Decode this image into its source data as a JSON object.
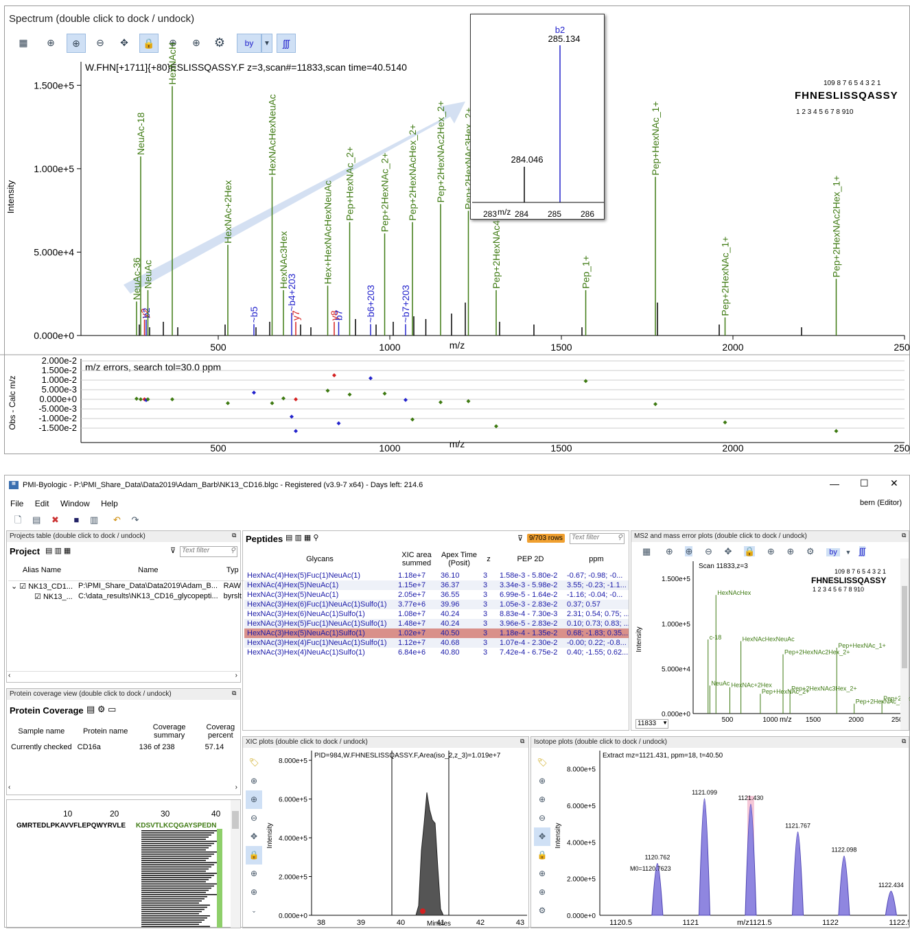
{
  "spectrum": {
    "title": "Spectrum (double click to dock / undock)",
    "header": "W.FHN[+1711]{+80}ESLISSQASSY.F z=3,scan#=11833,scan time=40.5140",
    "ylabel": "Intensity",
    "xlabel": "m/z",
    "yticks": [
      "1.500e+5",
      "1.000e+5",
      "5.000e+4",
      "0.000e+0"
    ],
    "xticks": [
      "500",
      "1000",
      "1500",
      "2000",
      "2500"
    ],
    "sequence": "FHNESLISSQASSY",
    "y_ion_numbers": "109 8 7 6 5 4 3 2 1",
    "b_ion_numbers": "1 2 3 4 5 6 7 8 910",
    "toolbar_by": "by",
    "peak_labels": [
      {
        "text": "NeuAc-36",
        "color": "#3e7a12",
        "mz": 262,
        "h": 15
      },
      {
        "text": "y2",
        "color": "#d42020",
        "mz": 285,
        "h": 7
      },
      {
        "text": "b2",
        "color": "#2222cc",
        "mz": 290,
        "h": 7
      },
      {
        "text": "NeuAc-18",
        "color": "#3e7a12",
        "mz": 274,
        "h": 79
      },
      {
        "text": "NeuAc",
        "color": "#3e7a12",
        "mz": 295,
        "h": 20
      },
      {
        "text": "HexNAcH",
        "color": "#3e7a12",
        "mz": 366,
        "h": 110
      },
      {
        "text": "HexNAc+2Hex",
        "color": "#3e7a12",
        "mz": 528,
        "h": 40
      },
      {
        "text": "~b5",
        "color": "#2222cc",
        "mz": 604,
        "h": 5
      },
      {
        "text": "HexNAcHexNeuAc",
        "color": "#3e7a12",
        "mz": 657,
        "h": 70
      },
      {
        "text": "HexNAc3Hex",
        "color": "#3e7a12",
        "mz": 690,
        "h": 20
      },
      {
        "text": "~b4+203",
        "color": "#2222cc",
        "mz": 714,
        "h": 10
      },
      {
        "text": "y7",
        "color": "#d42020",
        "mz": 726,
        "h": 6
      },
      {
        "text": "Hex+HexNAcHexNeuAc",
        "color": "#3e7a12",
        "mz": 819,
        "h": 22
      },
      {
        "text": "y8",
        "color": "#d42020",
        "mz": 838,
        "h": 6
      },
      {
        "text": "b7",
        "color": "#2222cc",
        "mz": 851,
        "h": 6
      },
      {
        "text": "Pep+HexNAc_2+",
        "color": "#3e7a12",
        "mz": 883,
        "h": 50
      },
      {
        "text": "~b6+203",
        "color": "#2222cc",
        "mz": 944,
        "h": 5
      },
      {
        "text": "Pep+2HexNAc_2+",
        "color": "#3e7a12",
        "mz": 985,
        "h": 45
      },
      {
        "text": "~b7+203",
        "color": "#2222cc",
        "mz": 1046,
        "h": 5
      },
      {
        "text": "Pep+2HexNAcHex_2+",
        "color": "#3e7a12",
        "mz": 1066,
        "h": 50
      },
      {
        "text": "Pep+2HexNAc2Hex_2+",
        "color": "#3e7a12",
        "mz": 1148,
        "h": 58
      },
      {
        "text": "Pep+2HexNAc3Hex_2+",
        "color": "#3e7a12",
        "mz": 1229,
        "h": 55
      },
      {
        "text": "Pep+2HexNAc4Hex",
        "color": "#3e7a12",
        "mz": 1310,
        "h": 20
      },
      {
        "text": "Pep_1+",
        "color": "#3e7a12",
        "mz": 1571,
        "h": 20
      },
      {
        "text": "Pep+HexNAc_1+",
        "color": "#3e7a12",
        "mz": 1774,
        "h": 70
      },
      {
        "text": "Pep+2HexNAc_1+",
        "color": "#3e7a12",
        "mz": 1977,
        "h": 8
      },
      {
        "text": "Pep+2HexNAc2Hex_1+",
        "color": "#3e7a12",
        "mz": 2301,
        "h": 25
      }
    ],
    "inset": {
      "peak1_label": "b2",
      "peak1_mz": "285.134",
      "peak2_mz": "284.046",
      "xticks": [
        "283",
        "284",
        "285",
        "286"
      ],
      "xlabel": "m/z"
    }
  },
  "errors_plot": {
    "title": "m/z errors, search tol=30.0 ppm",
    "ylabel": "Obs - Calc m/z",
    "yticks": [
      "2.000e-2",
      "1.500e-2",
      "1.000e-2",
      "5.000e-3",
      "0.000e+0",
      "-5.000e-3",
      "-1.000e-2",
      "-1.500e-2"
    ],
    "xticks": [
      "500",
      "1000",
      "1500",
      "2000",
      "2500"
    ],
    "xlabel": "m/z"
  },
  "app": {
    "window_title": "PMI-Byologic - P:\\PMI_Share_Data\\Data2019\\Adam_Barb\\NK13_CD16.blgc - Registered (v3.9-7 x64) - Days left: 214.6",
    "menu": [
      "File",
      "Edit",
      "Window",
      "Help"
    ],
    "user": "bern (Editor)",
    "projects_title": "Projects table (double click to dock / undock)",
    "project_label": "Project",
    "text_filter": "Text filter",
    "projects_cols": [
      "Alias Name",
      "Name",
      "Typ"
    ],
    "projects_rows": [
      {
        "alias": "NK13_CD1...",
        "name": "P:\\PMI_Share_Data\\Data2019\\Adam_B...",
        "type": "RAW"
      },
      {
        "alias": "NK13_...",
        "name": "C:\\data_results\\NK13_CD16_glycopepti...",
        "type": "byrslt"
      }
    ],
    "coverage_title": "Protein coverage view (double click to dock / undock)",
    "coverage_label": "Protein Coverage",
    "coverage_cols": [
      "Sample name",
      "Protein name",
      "Coverage summary",
      "Coverag percent"
    ],
    "coverage_row": {
      "sample": "Currently checked",
      "protein": "CD16a",
      "summary": "136 of 238",
      "percent": "57.14"
    },
    "seq_ticks": [
      "10",
      "20",
      "30",
      "40"
    ],
    "seq_black": "GMRTEDLPKAVVFLEPQWYRVLE",
    "seq_green": "KDSVTLKCQGAYSPEDN",
    "peptides_label": "Peptides",
    "rows_badge": "9/703 rows",
    "peptides_cols": [
      "Glycans",
      "XIC area summed",
      "Apex Time (Posit)",
      "z",
      "PEP 2D",
      "ppm"
    ],
    "peptides_rows": [
      {
        "g": "HexNAc(4)Hex(5)Fuc(1)NeuAc(1)",
        "a": "1.18e+7",
        "t": "36.10",
        "z": "3",
        "p": "1.58e-3 - 5.80e-2",
        "ppm": "-0.67; -0.98; -0..."
      },
      {
        "g": "HexNAc(4)Hex(5)NeuAc(1)",
        "a": "1.15e+7",
        "t": "36.37",
        "z": "3",
        "p": "3.34e-3 - 5.98e-2",
        "ppm": "3.55; -0.23; -1.1..."
      },
      {
        "g": "HexNAc(3)Hex(5)NeuAc(1)",
        "a": "2.05e+7",
        "t": "36.55",
        "z": "3",
        "p": "6.99e-5 - 1.64e-2",
        "ppm": "-1.16; -0.04; -0..."
      },
      {
        "g": "HexNAc(3)Hex(6)Fuc(1)NeuAc(1)Sulfo(1)",
        "a": "3.77e+6",
        "t": "39.96",
        "z": "3",
        "p": "1.05e-3 - 2.83e-2",
        "ppm": "0.37; 0.57"
      },
      {
        "g": "HexNAc(3)Hex(6)NeuAc(1)Sulfo(1)",
        "a": "1.08e+7",
        "t": "40.24",
        "z": "3",
        "p": "8.83e-4 - 7.30e-3",
        "ppm": "2.31; 0.54; 0.75; ..."
      },
      {
        "g": "HexNAc(3)Hex(5)Fuc(1)NeuAc(1)Sulfo(1)",
        "a": "1.48e+7",
        "t": "40.24",
        "z": "3",
        "p": "3.96e-5 - 2.83e-2",
        "ppm": "0.10; 0.73; 0.83; ..."
      },
      {
        "g": "HexNAc(3)Hex(5)NeuAc(1)Sulfo(1)",
        "a": "1.02e+7",
        "t": "40.50",
        "z": "3",
        "p": "1.18e-4 - 1.35e-2",
        "ppm": "0.68; -1.83; 0.35..."
      },
      {
        "g": "HexNAc(3)Hex(4)Fuc(1)NeuAc(1)Sulfo(1)",
        "a": "1.12e+7",
        "t": "40.68",
        "z": "3",
        "p": "1.07e-4 - 2.30e-2",
        "ppm": "-0.00; 0.22; -0.8..."
      },
      {
        "g": "HexNAc(3)Hex(4)NeuAc(1)Sulfo(1)",
        "a": "6.84e+6",
        "t": "40.80",
        "z": "3",
        "p": "7.42e-4 - 6.75e-2",
        "ppm": "0.40; -1.55; 0.62..."
      }
    ],
    "ms2_title": "MS2 and mass error plots (double click to dock / undock)",
    "ms2_header": "Scan 11833,z=3",
    "ms2_yticks": [
      "1.500e+5",
      "1.000e+5",
      "5.000e+4",
      "0.000e+0"
    ],
    "ms2_xticks": [
      "500",
      "1000",
      "1500",
      "2000",
      "2500"
    ],
    "ms2_scan": "11833",
    "ms2_labels": [
      "HexNAcHex",
      "c-18",
      "HexNAcHexNeuAc",
      "Pep+HexNAc_1+",
      "Pep+2HexNAc2Hex_2+",
      "NeuAc",
      "HexNAc+2Hex",
      "Pep+2HexNAc3Hex_2+",
      "Pep+HexNAc_2+",
      "Pep+2HexNAc2Hex_1",
      "Pep+2HexNAc_1+"
    ],
    "xic_title": "XIC plots (double click to dock / undock)",
    "xic_header": "PID=984,W.FHNESLISSQASSY.F,Area(iso_2,z_3)=1.019e+7",
    "xic_yticks": [
      "8.000e+5",
      "6.000e+5",
      "4.000e+5",
      "2.000e+5",
      "0.000e+0"
    ],
    "xic_xticks": [
      "38",
      "39",
      "40",
      "41",
      "42",
      "43"
    ],
    "xic_xlabel": "Minutes",
    "iso_title": "Isotope plots (double click to dock / undock)",
    "iso_header": "Extract mz=1121.431, ppm=18, t=40.50",
    "iso_yticks": [
      "8.000e+5",
      "6.000e+5",
      "4.000e+5",
      "2.000e+5",
      "0.000e+0"
    ],
    "iso_xticks": [
      "1120.5",
      "1121",
      "1121.5",
      "1122",
      "1122.5"
    ],
    "iso_m0": "M0=1120.7623",
    "iso_peaks": [
      {
        "label": "1120.762",
        "mz": 1120.762,
        "h": 0.28
      },
      {
        "label": "1121.099",
        "mz": 1121.099,
        "h": 0.63
      },
      {
        "label": "1121.430",
        "mz": 1121.43,
        "h": 0.6
      },
      {
        "label": "1121.767",
        "mz": 1121.767,
        "h": 0.45
      },
      {
        "label": "1122.098",
        "mz": 1122.098,
        "h": 0.32
      },
      {
        "label": "1122.434",
        "mz": 1122.434,
        "h": 0.13
      }
    ]
  },
  "colors": {
    "green": "#3e7a12",
    "blue": "#2222cc",
    "red": "#d42020",
    "select": "#d9908a",
    "iso_fill": "#8f86e0",
    "badge": "#f0a030"
  }
}
